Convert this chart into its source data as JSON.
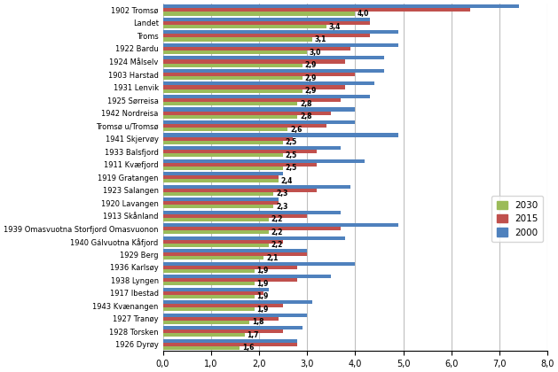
{
  "categories": [
    "1902 Tromsø",
    "Landet",
    "Troms",
    "1922 Bardu",
    "1924 Målselv",
    "1903 Harstad",
    "1931 Lenvik",
    "1925 Sørreisa",
    "1942 Nordreisa",
    "Tromsø u/Tromsø",
    "1941 Skjervøy",
    "1933 Balsfjord",
    "1911 Kvæfjord",
    "1919 Gratangen",
    "1923 Salangen",
    "1920 Lavangen",
    "1913 Skånland",
    "1939 Omasvuotna Storfjord Omasvuonon",
    "1940 Gálvuotna Kåfjord",
    "1929 Berg",
    "1936 Karlsøy",
    "1938 Lyngen",
    "1917 Ibestad",
    "1943 Kvænangen",
    "1927 Tranøy",
    "1928 Torsken",
    "1926 Dyrøy"
  ],
  "val_2030": [
    4.0,
    3.4,
    3.1,
    3.0,
    2.9,
    2.9,
    2.9,
    2.8,
    2.8,
    2.6,
    2.5,
    2.5,
    2.5,
    2.4,
    2.3,
    2.3,
    2.2,
    2.2,
    2.2,
    2.1,
    1.9,
    1.9,
    1.9,
    1.9,
    1.8,
    1.7,
    1.6
  ],
  "val_2015": [
    6.4,
    4.3,
    4.3,
    3.9,
    3.8,
    4.0,
    3.8,
    3.7,
    3.5,
    3.4,
    2.7,
    3.2,
    3.2,
    2.4,
    3.2,
    2.4,
    3.0,
    3.7,
    2.5,
    3.0,
    2.8,
    2.8,
    2.1,
    2.5,
    2.4,
    2.5,
    2.8
  ],
  "val_2000": [
    7.4,
    4.3,
    4.9,
    4.9,
    4.6,
    4.6,
    4.4,
    4.3,
    4.0,
    4.0,
    4.9,
    3.7,
    4.2,
    2.5,
    3.9,
    2.4,
    3.7,
    4.9,
    3.8,
    3.0,
    4.0,
    3.5,
    2.2,
    3.1,
    3.0,
    2.9,
    2.8
  ],
  "color_2030": "#9BBB59",
  "color_2015": "#C0504D",
  "color_2000": "#4F81BD",
  "xlim": [
    0,
    8.0
  ],
  "xticks": [
    0.0,
    1.0,
    2.0,
    3.0,
    4.0,
    5.0,
    6.0,
    7.0,
    8.0
  ],
  "xtick_labels": [
    "0,0",
    "1,0",
    "2,0",
    "3,0",
    "4,0",
    "5,0",
    "6,0",
    "7,0",
    "8,0"
  ],
  "legend_labels": [
    "2030",
    "2015",
    "2000"
  ],
  "bar_height": 0.28,
  "label_fontsize": 5.5,
  "ytick_fontsize": 6.0,
  "xtick_fontsize": 7.0,
  "background_color": "#FFFFFF",
  "grid_color": "#BFBFBF"
}
